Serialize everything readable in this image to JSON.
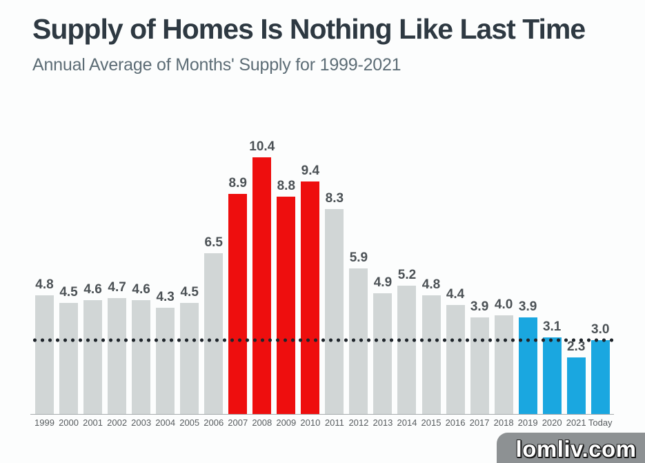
{
  "header": {
    "title": "Supply of Homes Is Nothing Like Last Time",
    "subtitle": "Annual Average of Months' Supply for 1999-2021"
  },
  "chart_data": {
    "type": "bar",
    "title": "Supply of Homes Is Nothing Like Last Time",
    "subtitle": "Annual Average of Months' Supply for 1999-2021",
    "categories": [
      "1999",
      "2000",
      "2001",
      "2002",
      "2003",
      "2004",
      "2005",
      "2006",
      "2007",
      "2008",
      "2009",
      "2010",
      "2011",
      "2012",
      "2013",
      "2014",
      "2015",
      "2016",
      "2017",
      "2018",
      "2019",
      "2020",
      "2021",
      "Today"
    ],
    "values": [
      4.8,
      4.5,
      4.6,
      4.7,
      4.6,
      4.3,
      4.5,
      6.5,
      8.9,
      10.4,
      8.8,
      9.4,
      8.3,
      5.9,
      4.9,
      5.2,
      4.8,
      4.4,
      3.9,
      4.0,
      3.9,
      3.1,
      2.3,
      3.0
    ],
    "bar_colors": [
      "gray",
      "gray",
      "gray",
      "gray",
      "gray",
      "gray",
      "gray",
      "gray",
      "red",
      "red",
      "red",
      "red",
      "gray",
      "gray",
      "gray",
      "gray",
      "gray",
      "gray",
      "gray",
      "gray",
      "blue",
      "blue",
      "blue",
      "blue"
    ],
    "palette": {
      "gray": "#d1d6d6",
      "red": "#ee0e0e",
      "blue": "#1aa7e0"
    },
    "ylim": [
      0,
      11.5
    ],
    "value_labels": true,
    "grid": false,
    "legend": "none",
    "xlabel": "",
    "ylabel": "",
    "reference_line": {
      "value": 3.0,
      "style": "dotted",
      "color": "#1f252b"
    }
  },
  "watermark": {
    "text": "lomliv.com"
  }
}
